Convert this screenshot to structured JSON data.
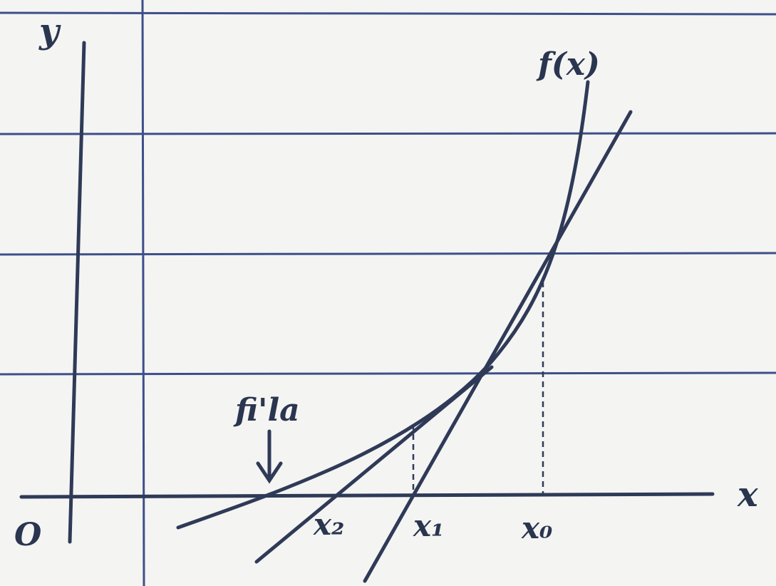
{
  "axes": {
    "y": "y",
    "x": "x",
    "origin": "O"
  },
  "curve_label": "f(x)",
  "root_label": "fi'la",
  "points": [
    "x₂",
    "x₁",
    "x₀"
  ]
}
